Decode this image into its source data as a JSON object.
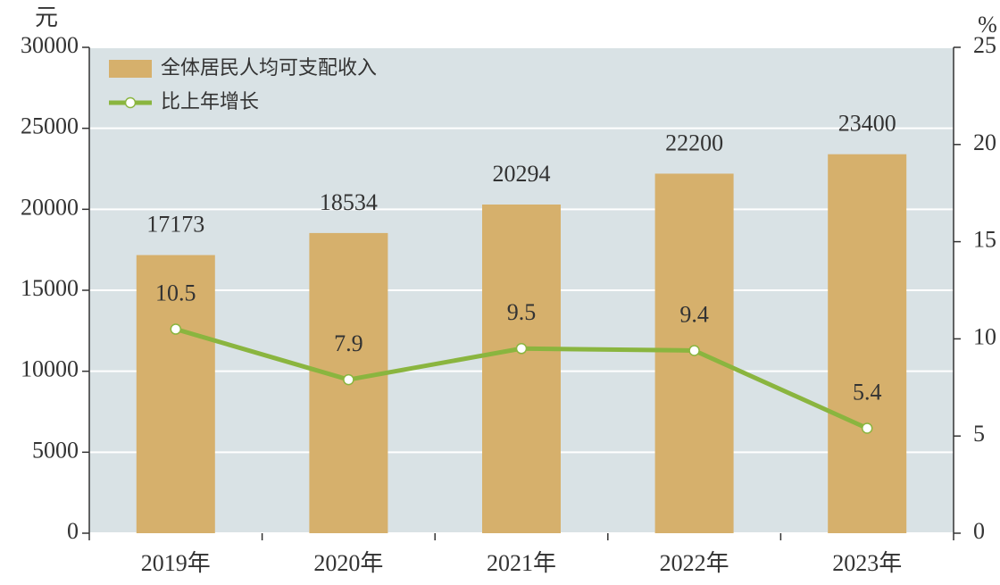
{
  "chart_data": {
    "type": "bar",
    "y_label": "元",
    "y2_label": "%",
    "categories": [
      "2019年",
      "2020年",
      "2021年",
      "2022年",
      "2023年"
    ],
    "series": [
      {
        "name": "全体居民人均可支配收入",
        "type": "bar",
        "color": "#d6b06c",
        "values": [
          17173,
          18534,
          20294,
          22200,
          23400
        ]
      },
      {
        "name": "比上年增长",
        "type": "line",
        "axis": "y2",
        "color": "#8ab53f",
        "values": [
          10.5,
          7.9,
          9.5,
          9.4,
          5.4
        ]
      }
    ],
    "ylim": [
      0,
      30000
    ],
    "yticks": [
      0,
      5000,
      10000,
      15000,
      20000,
      25000,
      30000
    ],
    "y2lim": [
      0,
      25
    ],
    "y2ticks": [
      0,
      5,
      10,
      15,
      20,
      25
    ],
    "grid": true,
    "legend": "top-left",
    "background": "#d9e2e5"
  }
}
